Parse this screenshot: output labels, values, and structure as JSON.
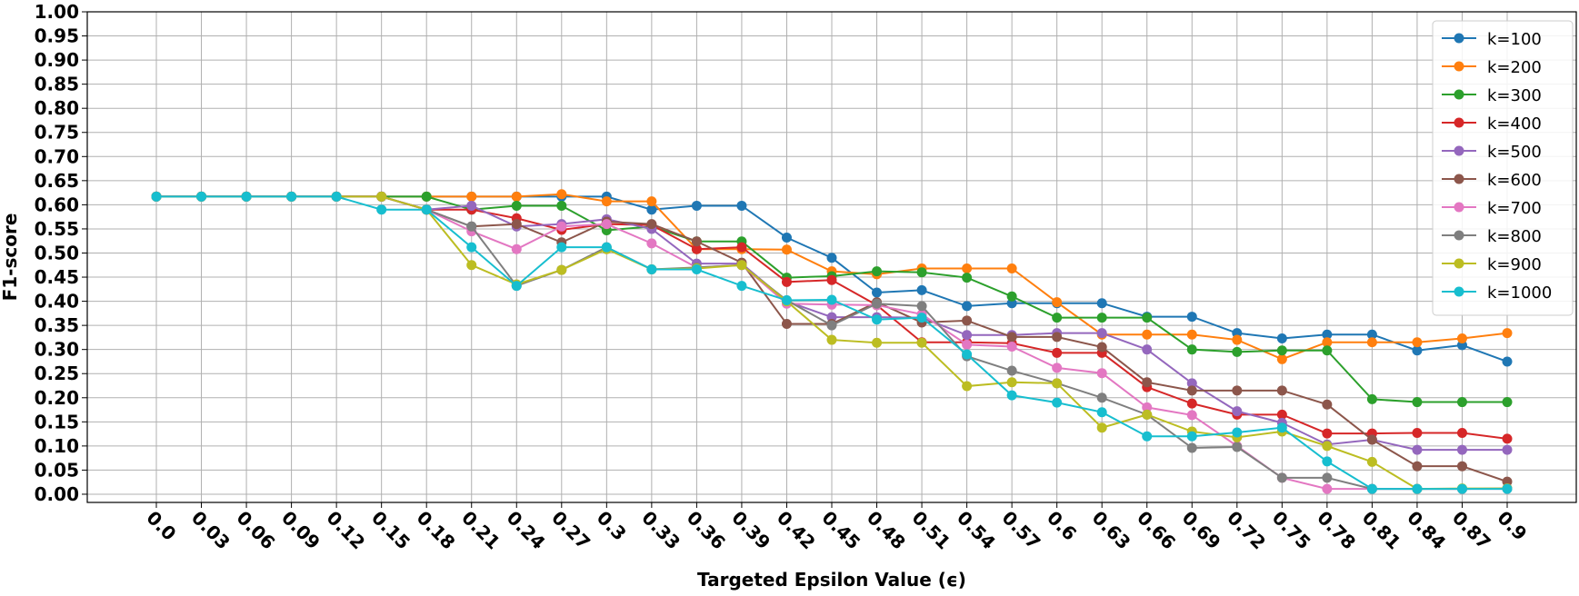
{
  "chart_data": {
    "type": "line",
    "x_label": "Targeted Epsilon Value (ϵ)",
    "y_label": "F1-score",
    "categories": [
      "0.0",
      "0.03",
      "0.06",
      "0.09",
      "0.12",
      "0.15",
      "0.18",
      "0.21",
      "0.24",
      "0.27",
      "0.3",
      "0.33",
      "0.36",
      "0.39",
      "0.42",
      "0.45",
      "0.48",
      "0.51",
      "0.54",
      "0.57",
      "0.6",
      "0.63",
      "0.66",
      "0.69",
      "0.72",
      "0.75",
      "0.78",
      "0.81",
      "0.84",
      "0.87",
      "0.9"
    ],
    "ylim": [
      -0.017,
      1.0
    ],
    "yticks": [
      {
        "value": 0,
        "label": "0.00"
      },
      0.05,
      {
        "value": 0.1,
        "label": "0.10"
      },
      0.15,
      {
        "value": 0.2,
        "label": "0.20"
      },
      0.25,
      {
        "value": 0.3,
        "label": "0.30"
      },
      0.35,
      {
        "value": 0.4,
        "label": "0.40"
      },
      0.45,
      {
        "value": 0.5,
        "label": "0.50"
      },
      0.55,
      {
        "value": 0.6,
        "label": "0.60"
      },
      0.65,
      {
        "value": 0.7,
        "label": "0.70"
      },
      0.75,
      {
        "value": 0.8,
        "label": "0.80"
      },
      0.85,
      {
        "value": 0.9,
        "label": "0.90"
      },
      0.95,
      {
        "value": 1,
        "label": "1.00"
      }
    ],
    "grid": true,
    "legend": "upper right",
    "series": [
      {
        "name": "k=100",
        "color": "#1f77b4",
        "values": [
          0.617,
          0.617,
          0.617,
          0.617,
          0.617,
          0.617,
          0.617,
          0.617,
          0.617,
          0.617,
          0.617,
          0.59,
          0.598,
          0.598,
          0.532,
          0.49,
          0.418,
          0.423,
          0.39,
          0.396,
          0.396,
          0.396,
          0.368,
          0.368,
          0.334,
          0.323,
          0.331,
          0.331,
          0.298,
          0.309,
          0.275
        ]
      },
      {
        "name": "k=200",
        "color": "#ff7f0e",
        "values": [
          0.617,
          0.617,
          0.617,
          0.617,
          0.617,
          0.617,
          0.617,
          0.617,
          0.617,
          0.622,
          0.607,
          0.607,
          0.508,
          0.508,
          0.507,
          0.462,
          0.456,
          0.468,
          0.468,
          0.468,
          0.398,
          0.331,
          0.331,
          0.331,
          0.32,
          0.28,
          0.315,
          0.315,
          0.315,
          0.323,
          0.334
        ]
      },
      {
        "name": "k=300",
        "color": "#2ca02c",
        "values": [
          0.617,
          0.617,
          0.617,
          0.617,
          0.617,
          0.617,
          0.617,
          0.59,
          0.598,
          0.598,
          0.547,
          0.555,
          0.524,
          0.524,
          0.449,
          0.452,
          0.462,
          0.46,
          0.449,
          0.41,
          0.366,
          0.366,
          0.366,
          0.3,
          0.295,
          0.298,
          0.298,
          0.197,
          0.191,
          0.191,
          0.191
        ]
      },
      {
        "name": "k=400",
        "color": "#d62728",
        "values": [
          0.617,
          0.617,
          0.617,
          0.617,
          0.617,
          0.617,
          0.59,
          0.59,
          0.572,
          0.548,
          0.56,
          0.558,
          0.508,
          0.512,
          0.44,
          0.444,
          0.392,
          0.315,
          0.315,
          0.313,
          0.293,
          0.293,
          0.222,
          0.188,
          0.165,
          0.165,
          0.126,
          0.126,
          0.127,
          0.127,
          0.115
        ]
      },
      {
        "name": "k=500",
        "color": "#9467bd",
        "values": [
          0.617,
          0.617,
          0.617,
          0.617,
          0.617,
          0.617,
          0.59,
          0.598,
          0.555,
          0.56,
          0.57,
          0.55,
          0.478,
          0.478,
          0.4,
          0.367,
          0.367,
          0.366,
          0.33,
          0.33,
          0.334,
          0.334,
          0.3,
          0.23,
          0.172,
          0.148,
          0.103,
          0.113,
          0.092,
          0.092,
          0.092
        ]
      },
      {
        "name": "k=600",
        "color": "#8c564b",
        "values": [
          0.617,
          0.617,
          0.617,
          0.617,
          0.617,
          0.617,
          0.59,
          0.555,
          0.56,
          0.522,
          0.565,
          0.56,
          0.524,
          0.48,
          0.353,
          0.353,
          0.398,
          0.356,
          0.36,
          0.326,
          0.326,
          0.305,
          0.232,
          0.215,
          0.215,
          0.215,
          0.186,
          0.113,
          0.058,
          0.058,
          0.026
        ]
      },
      {
        "name": "k=700",
        "color": "#e377c2",
        "values": [
          0.617,
          0.617,
          0.617,
          0.617,
          0.617,
          0.617,
          0.59,
          0.545,
          0.508,
          0.555,
          0.56,
          0.52,
          0.47,
          0.475,
          0.395,
          0.393,
          0.392,
          0.373,
          0.31,
          0.306,
          0.262,
          0.251,
          0.18,
          0.164,
          0.1,
          0.034,
          0.011,
          0.011,
          0.011,
          0.011,
          0.011
        ]
      },
      {
        "name": "k=800",
        "color": "#7f7f7f",
        "values": [
          0.617,
          0.617,
          0.617,
          0.617,
          0.617,
          0.617,
          0.59,
          0.555,
          0.432,
          0.465,
          0.512,
          0.466,
          0.47,
          0.475,
          0.402,
          0.35,
          0.395,
          0.39,
          0.286,
          0.256,
          0.23,
          0.2,
          0.165,
          0.096,
          0.098,
          0.034,
          0.034,
          0.011,
          0.011,
          0.011,
          0.012
        ]
      },
      {
        "name": "k=900",
        "color": "#bcbd22",
        "values": [
          0.617,
          0.617,
          0.617,
          0.617,
          0.617,
          0.617,
          0.59,
          0.475,
          0.435,
          0.465,
          0.508,
          0.466,
          0.468,
          0.475,
          0.4,
          0.32,
          0.314,
          0.314,
          0.224,
          0.232,
          0.23,
          0.138,
          0.165,
          0.13,
          0.118,
          0.13,
          0.1,
          0.067,
          0.011,
          0.012,
          0.012
        ]
      },
      {
        "name": "k=1000",
        "color": "#17becf",
        "values": [
          0.617,
          0.617,
          0.617,
          0.617,
          0.617,
          0.59,
          0.59,
          0.512,
          0.432,
          0.512,
          0.512,
          0.466,
          0.466,
          0.432,
          0.402,
          0.403,
          0.362,
          0.366,
          0.29,
          0.205,
          0.19,
          0.17,
          0.12,
          0.12,
          0.128,
          0.138,
          0.068,
          0.011,
          0.011,
          0.011,
          0.011
        ]
      }
    ]
  }
}
